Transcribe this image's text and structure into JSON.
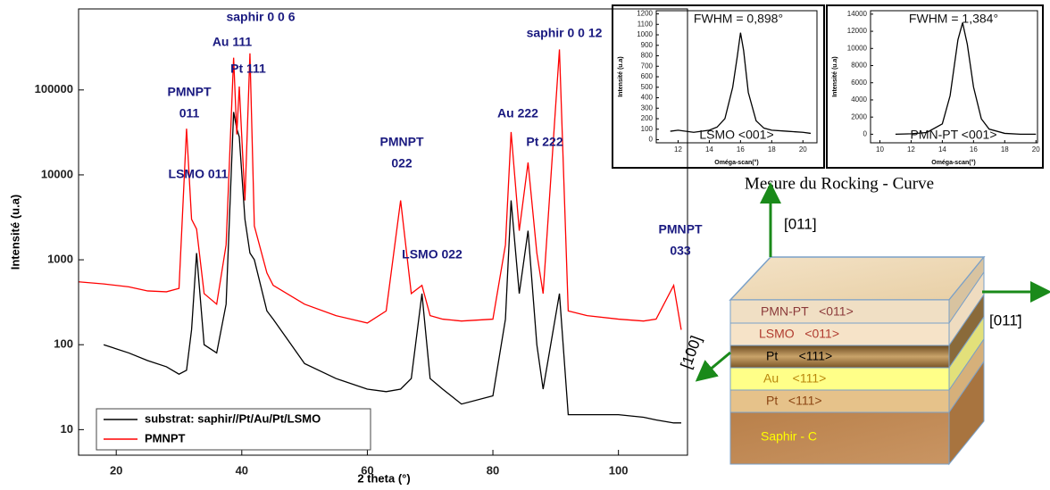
{
  "chart_data": [
    {
      "type": "line",
      "x_label": "2 theta (°)",
      "y_label": "Intensité (u.a)",
      "log": true,
      "xlim": [
        14,
        111
      ],
      "xticks": [
        20,
        40,
        60,
        80,
        100
      ],
      "ylim": [
        5,
        900000
      ],
      "yticks": [
        10,
        100,
        1000,
        10000,
        100000
      ],
      "legend": "lower left",
      "x": [
        14,
        18,
        22,
        25,
        28,
        30,
        31.2,
        32,
        32.8,
        34,
        36,
        37.5,
        38.7,
        39.2,
        39.6,
        40.5,
        41.3,
        42,
        44,
        45,
        50,
        55,
        60,
        63,
        65.3,
        67,
        68.7,
        70,
        72,
        75,
        80,
        82,
        82.9,
        84.2,
        85.6,
        87,
        88,
        90.6,
        92,
        95,
        100,
        104,
        106,
        108.8,
        110
      ],
      "series": [
        {
          "name": "substrat: saphir//Pt/Au/Pt/LSMO",
          "color": "#000000",
          "values": [
            null,
            100,
            80,
            65,
            55,
            45,
            50,
            150,
            1200,
            100,
            80,
            300,
            55000,
            35000,
            28000,
            3000,
            1200,
            1000,
            250,
            200,
            60,
            40,
            30,
            28,
            30,
            40,
            400,
            40,
            30,
            20,
            25,
            200,
            5000,
            400,
            2200,
            100,
            30,
            400,
            15,
            15,
            15,
            14,
            13,
            12,
            12
          ]
        },
        {
          "name": "PMNPT",
          "color": "#ff0000",
          "values": [
            550,
            520,
            480,
            430,
            420,
            460,
            35000,
            3000,
            2300,
            400,
            300,
            1500,
            240000,
            30000,
            110000,
            5000,
            270000,
            2500,
            700,
            500,
            300,
            220,
            180,
            250,
            5000,
            400,
            500,
            220,
            200,
            190,
            200,
            1500,
            32000,
            2200,
            14000,
            1200,
            400,
            300000,
            250,
            220,
            200,
            190,
            200,
            500,
            150
          ]
        }
      ],
      "annotations": [
        "saphir 0 0 6",
        "Au 111",
        "Pt 111",
        "PMNPT",
        "011",
        "LSMO 011",
        "PMNPT",
        "022",
        "LSMO 022",
        "Au 222",
        "Pt 222",
        "saphir 0 0 12",
        "PMNPT",
        "033"
      ]
    },
    {
      "type": "line",
      "x_label": "Oméga-scan(°)",
      "y_label": "Intensité (u.a)",
      "xlim": [
        10.6,
        20.9
      ],
      "xticks": [
        12,
        14,
        16,
        18,
        20
      ],
      "ylim": [
        -30,
        1230
      ],
      "yticks": [
        0,
        100,
        200,
        300,
        400,
        500,
        600,
        700,
        800,
        900,
        1000,
        1100,
        1200
      ],
      "x": [
        11.5,
        12,
        13,
        14,
        14.5,
        15,
        15.5,
        15.8,
        16,
        16.2,
        16.5,
        17,
        17.5,
        18,
        19,
        20,
        20.5
      ],
      "series": [
        {
          "color": "#000000",
          "values": [
            80,
            90,
            70,
            90,
            120,
            200,
            500,
            800,
            1020,
            850,
            450,
            180,
            110,
            90,
            80,
            70,
            60
          ]
        }
      ],
      "annotations": [
        "FWHM = 0,898°",
        "LSMO <001>"
      ]
    },
    {
      "type": "line",
      "x_label": "Oméga-scan(°)",
      "y_label": "Intensité (u.a)",
      "xlim": [
        9.4,
        20.1
      ],
      "xticks": [
        10,
        12,
        14,
        16,
        18,
        20
      ],
      "ylim": [
        -1000,
        14400
      ],
      "yticks": [
        0,
        2000,
        4000,
        6000,
        8000,
        10000,
        12000,
        14000
      ],
      "x": [
        11,
        12,
        13,
        14,
        14.5,
        15,
        15.3,
        15.6,
        16,
        16.5,
        17,
        18,
        19,
        20
      ],
      "series": [
        {
          "color": "#000000",
          "values": [
            0,
            50,
            200,
            1200,
            4500,
            11000,
            13000,
            10500,
            5500,
            1800,
            600,
            100,
            0,
            0
          ]
        }
      ],
      "annotations": [
        "FWHM = 1,384°",
        "PMN-PT <001>"
      ]
    }
  ],
  "figure_caption": "Mesure du Rocking - Curve",
  "diagram": {
    "directions": [
      "[011]",
      "[011̄]",
      "[100]"
    ],
    "layers": [
      "PMN-PT   <011>",
      "LSMO   <011>",
      "Pt      <111>",
      "Au    <111>",
      "Pt   <111>",
      "Saphir - C"
    ]
  }
}
